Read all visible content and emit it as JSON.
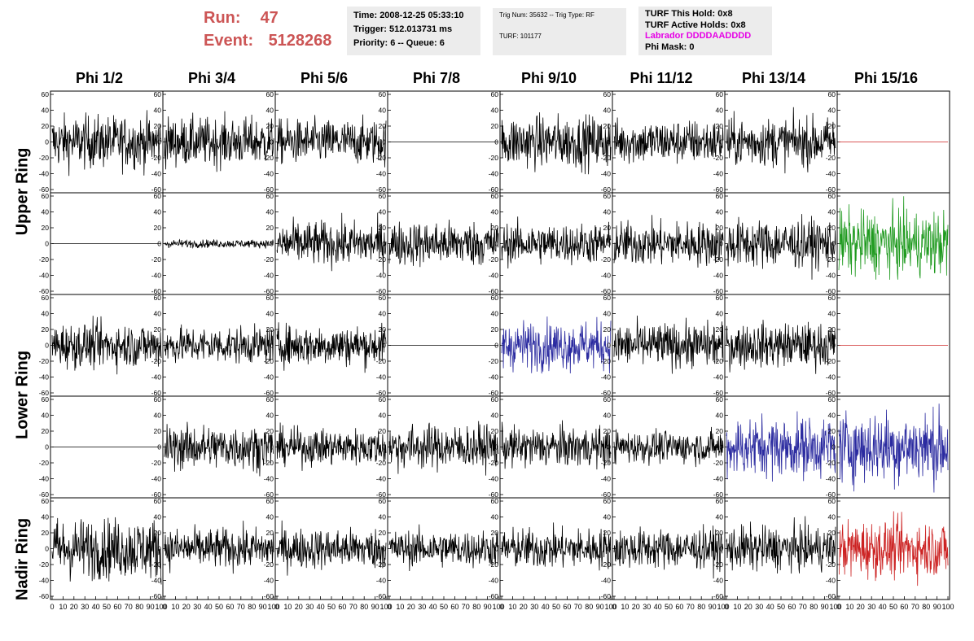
{
  "header": {
    "run_label": "Run:",
    "run_value": "47",
    "event_label": "Event:",
    "event_value": "5128268",
    "time": "Time: 2008-12-25 05:33:10",
    "trigger": "Trigger: 512.013731 ms",
    "priority": "Priority: 6 -- Queue: 6",
    "trig_num": "Trig Num: 35632 -- Trig Type: RF",
    "turf": "TURF: 101177",
    "turf_this_hold": "TURF This Hold: 0x8",
    "turf_active_holds": "TURF Active Holds: 0x8",
    "labrador": "Labrador DDDDAADDDD",
    "phi_mask": "Phi Mask: 0"
  },
  "colors": {
    "run_text": "#cc5555",
    "labrador_text": "#e600e6",
    "black": "#000000",
    "blue": "#2b2ba0",
    "green": "#1f9a1f",
    "red": "#cc2222"
  },
  "column_headers": [
    "Phi 1/2",
    "Phi 3/4",
    "Phi 5/6",
    "Phi 7/8",
    "Phi 9/10",
    "Phi 11/12",
    "Phi 13/14",
    "Phi 15/16"
  ],
  "row_labels": [
    "Upper Ring",
    "Lower Ring",
    "Nadir Ring"
  ],
  "chart_data": {
    "type": "line",
    "title": "",
    "xlabel": "",
    "ylabel": "",
    "xlim": [
      0,
      100
    ],
    "ylim": [
      -60,
      60
    ],
    "y_ticks": [
      -60,
      -40,
      -20,
      0,
      20,
      40,
      60
    ],
    "x_ticks": [
      0,
      10,
      20,
      30,
      40,
      50,
      60,
      70,
      80,
      90,
      100
    ],
    "x_tick_labels": "0 10 20 30 40 50 60 70 80 90 100",
    "grid": false,
    "rows": 5,
    "cols": 8,
    "panels": [
      {
        "row": 0,
        "col": 0,
        "amp": 26,
        "color": "black"
      },
      {
        "row": 0,
        "col": 1,
        "amp": 24,
        "color": "black"
      },
      {
        "row": 0,
        "col": 2,
        "amp": 22,
        "color": "black"
      },
      {
        "row": 0,
        "col": 3,
        "amp": 0,
        "color": "black"
      },
      {
        "row": 0,
        "col": 4,
        "amp": 26,
        "color": "black"
      },
      {
        "row": 0,
        "col": 5,
        "amp": 22,
        "color": "black"
      },
      {
        "row": 0,
        "col": 6,
        "amp": 24,
        "color": "black"
      },
      {
        "row": 0,
        "col": 7,
        "amp": 0,
        "color": "red"
      },
      {
        "row": 1,
        "col": 0,
        "amp": 0,
        "color": "black"
      },
      {
        "row": 1,
        "col": 1,
        "amp": 4,
        "color": "black"
      },
      {
        "row": 1,
        "col": 2,
        "amp": 22,
        "color": "black"
      },
      {
        "row": 1,
        "col": 3,
        "amp": 22,
        "color": "black"
      },
      {
        "row": 1,
        "col": 4,
        "amp": 20,
        "color": "black"
      },
      {
        "row": 1,
        "col": 5,
        "amp": 22,
        "color": "black"
      },
      {
        "row": 1,
        "col": 6,
        "amp": 24,
        "color": "black"
      },
      {
        "row": 1,
        "col": 7,
        "amp": 32,
        "color": "green"
      },
      {
        "row": 2,
        "col": 0,
        "amp": 22,
        "color": "black"
      },
      {
        "row": 2,
        "col": 1,
        "amp": 18,
        "color": "black"
      },
      {
        "row": 2,
        "col": 2,
        "amp": 20,
        "color": "black"
      },
      {
        "row": 2,
        "col": 3,
        "amp": 0,
        "color": "black"
      },
      {
        "row": 2,
        "col": 4,
        "amp": 24,
        "color": "blue"
      },
      {
        "row": 2,
        "col": 5,
        "amp": 22,
        "color": "black"
      },
      {
        "row": 2,
        "col": 6,
        "amp": 22,
        "color": "black"
      },
      {
        "row": 2,
        "col": 7,
        "amp": 0,
        "color": "red"
      },
      {
        "row": 3,
        "col": 0,
        "amp": 0,
        "color": "black"
      },
      {
        "row": 3,
        "col": 1,
        "amp": 22,
        "color": "black"
      },
      {
        "row": 3,
        "col": 2,
        "amp": 18,
        "color": "black"
      },
      {
        "row": 3,
        "col": 3,
        "amp": 22,
        "color": "black"
      },
      {
        "row": 3,
        "col": 4,
        "amp": 20,
        "color": "black"
      },
      {
        "row": 3,
        "col": 5,
        "amp": 16,
        "color": "black"
      },
      {
        "row": 3,
        "col": 6,
        "amp": 30,
        "color": "blue"
      },
      {
        "row": 3,
        "col": 7,
        "amp": 36,
        "color": "blue"
      },
      {
        "row": 4,
        "col": 0,
        "amp": 30,
        "color": "black"
      },
      {
        "row": 4,
        "col": 1,
        "amp": 20,
        "color": "black"
      },
      {
        "row": 4,
        "col": 2,
        "amp": 20,
        "color": "black"
      },
      {
        "row": 4,
        "col": 3,
        "amp": 18,
        "color": "black"
      },
      {
        "row": 4,
        "col": 4,
        "amp": 20,
        "color": "black"
      },
      {
        "row": 4,
        "col": 5,
        "amp": 20,
        "color": "black"
      },
      {
        "row": 4,
        "col": 6,
        "amp": 22,
        "color": "black"
      },
      {
        "row": 4,
        "col": 7,
        "amp": 28,
        "color": "red"
      }
    ]
  }
}
